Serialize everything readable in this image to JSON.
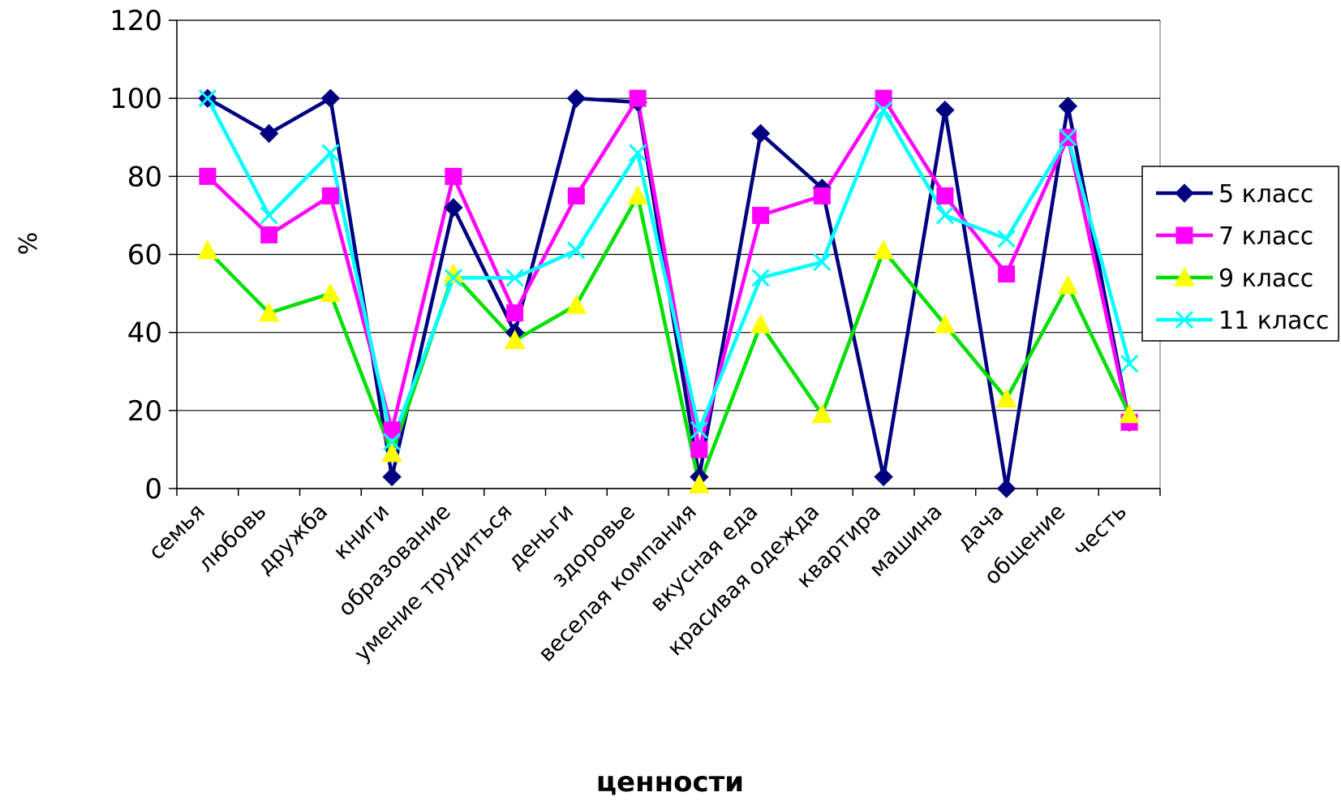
{
  "chart_data": {
    "type": "line",
    "categories": [
      "семья",
      "любовь",
      "дружба",
      "книги",
      "образование",
      "умение трудиться",
      "деньги",
      "здоровье",
      "веселая компания",
      "вкусная еда",
      "красивая одежда",
      "квартира",
      "машина",
      "дача",
      "общение",
      "честь"
    ],
    "xlabel": "ценности",
    "ylabel": "%",
    "ylim": [
      0,
      120
    ],
    "yticks": [
      0,
      20,
      40,
      60,
      80,
      100,
      120
    ],
    "grid": true,
    "legend_position": "right",
    "series": [
      {
        "name": "5 класс",
        "color": "#000080",
        "marker": "diamond",
        "values": [
          100,
          91,
          100,
          3,
          72,
          40,
          100,
          99,
          3,
          91,
          77,
          3,
          97,
          0,
          98,
          17
        ]
      },
      {
        "name": "7 класс",
        "color": "#ff00ff",
        "marker": "square",
        "values": [
          80,
          65,
          75,
          15,
          80,
          45,
          75,
          100,
          10,
          70,
          75,
          100,
          75,
          55,
          90,
          17
        ]
      },
      {
        "name": "9 класс",
        "color": "#00e000",
        "marker": "triangle",
        "marker_color": "#ffff00",
        "values": [
          61,
          45,
          50,
          9,
          55,
          38,
          47,
          75,
          1,
          42,
          19,
          61,
          42,
          23,
          52,
          19
        ]
      },
      {
        "name": "11 класс",
        "color": "#00ffff",
        "marker": "x",
        "values": [
          100,
          70,
          86,
          12,
          54,
          54,
          61,
          86,
          15,
          54,
          58,
          97,
          70,
          64,
          90,
          32
        ]
      }
    ]
  }
}
